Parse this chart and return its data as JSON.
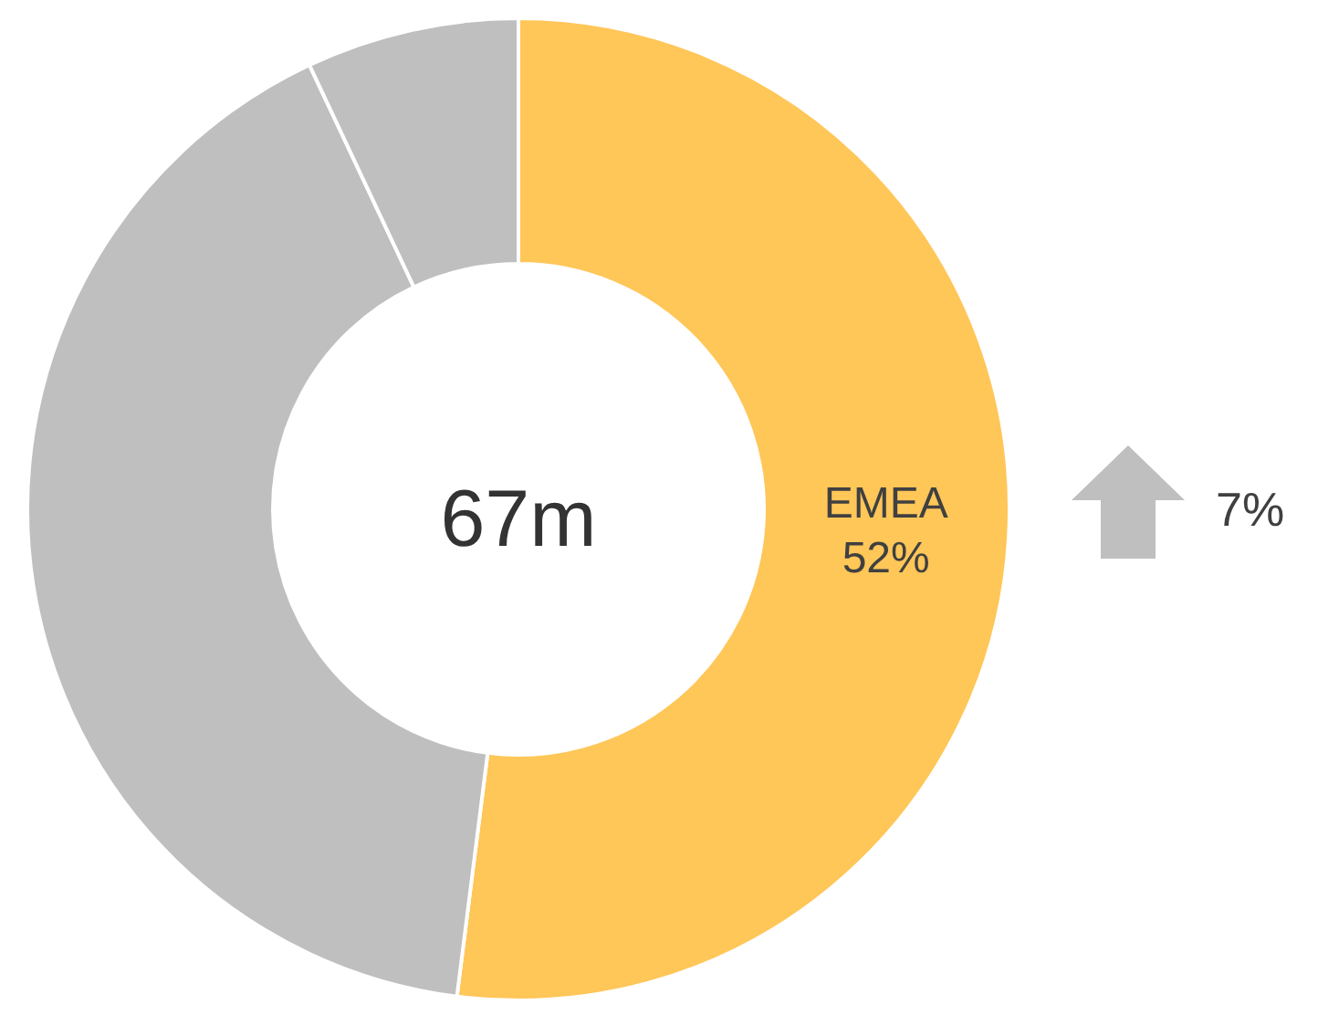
{
  "chart_data": {
    "type": "donut",
    "categories": [
      "EMEA",
      null,
      null
    ],
    "values": [
      52,
      41,
      7
    ],
    "colors": [
      "#ffc658",
      "#bfbfbf",
      "#bfbfbf"
    ],
    "value_labels": [
      "52%",
      null,
      null
    ],
    "annotations": [
      "67m",
      "7%"
    ],
    "legend": false
  }
}
